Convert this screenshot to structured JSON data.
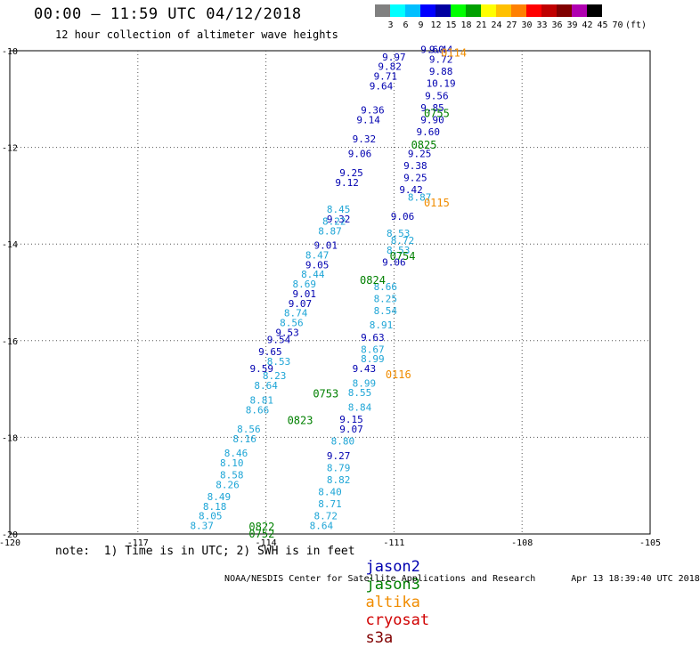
{
  "header": {
    "title": "00:00 — 11:59 UTC 04/12/2018",
    "subtitle": "12 hour collection of altimeter wave heights"
  },
  "color_scale": {
    "colors": [
      "#808080",
      "#00ffff",
      "#00bfff",
      "#0000ff",
      "#0000a0",
      "#00ff00",
      "#00a000",
      "#ffff00",
      "#ffc000",
      "#ff8000",
      "#ff0000",
      "#c00000",
      "#800000",
      "#b000b0",
      "#000000"
    ],
    "labels": [
      "3",
      "6",
      "9",
      "12",
      "15",
      "18",
      "21",
      "24",
      "27",
      "30",
      "33",
      "36",
      "39",
      "42",
      "45",
      "70",
      "(ft)"
    ]
  },
  "satellite_colors": {
    "jason2": "#0000b0",
    "jason2_light": "#1ea5d6",
    "jason3": "#008000",
    "altika": "#f08c00",
    "cryosat": "#d00000",
    "s3a": "#800000"
  },
  "chart_data": {
    "type": "scatter",
    "title": "00:00 — 11:59 UTC 04/12/2018",
    "subtitle": "12 hour collection of altimeter wave heights",
    "xlim": [
      -120,
      -105
    ],
    "ylim": [
      -20,
      -10
    ],
    "x_ticks": [
      "-120",
      "-117",
      "-114",
      "-111",
      "-108",
      "-105"
    ],
    "x_tick_values": [
      -120,
      -117,
      -114,
      -111,
      -108,
      -105
    ],
    "y_ticks": [
      "-10",
      "-12",
      "-14",
      "-16",
      "-18",
      "-20"
    ],
    "y_tick_values": [
      -10,
      -12,
      -14,
      -16,
      -18,
      -20
    ],
    "grid": true,
    "series": [
      {
        "name": "jason2",
        "color": "#0000b0",
        "points": [
          {
            "lon": -110.1,
            "lat": -10.05,
            "v": "9.60"
          },
          {
            "lon": -109.9,
            "lat": -10.05,
            "v": "9.44"
          },
          {
            "lon": -109.9,
            "lat": -10.25,
            "v": "9.72"
          },
          {
            "lon": -109.9,
            "lat": -10.5,
            "v": "9.88"
          },
          {
            "lon": -109.9,
            "lat": -10.75,
            "v": "10.19"
          },
          {
            "lon": -110.0,
            "lat": -11.0,
            "v": "9.56"
          },
          {
            "lon": -110.1,
            "lat": -11.25,
            "v": "9.85"
          },
          {
            "lon": -110.1,
            "lat": -11.5,
            "v": "9.90"
          },
          {
            "lon": -110.2,
            "lat": -11.75,
            "v": "9.60"
          },
          {
            "lon": -110.4,
            "lat": -12.2,
            "v": "9.25"
          },
          {
            "lon": -110.5,
            "lat": -12.45,
            "v": "9.38"
          },
          {
            "lon": -110.5,
            "lat": -12.7,
            "v": "9.25"
          },
          {
            "lon": -110.6,
            "lat": -12.95,
            "v": "9.42"
          },
          {
            "lon": -110.8,
            "lat": -13.5,
            "v": "9.06"
          },
          {
            "lon": -111.0,
            "lat": -14.45,
            "v": "9.06"
          },
          {
            "lon": -111.5,
            "lat": -16.0,
            "v": "9.63"
          },
          {
            "lon": -111.7,
            "lat": -16.65,
            "v": "9.43"
          },
          {
            "lon": -112.0,
            "lat": -17.7,
            "v": "9.15"
          },
          {
            "lon": -112.0,
            "lat": -17.9,
            "v": "9.07"
          },
          {
            "lon": -112.3,
            "lat": -18.45,
            "v": "9.27"
          },
          {
            "lon": -111.0,
            "lat": -10.2,
            "v": "9.97"
          },
          {
            "lon": -111.1,
            "lat": -10.4,
            "v": "9.82"
          },
          {
            "lon": -111.2,
            "lat": -10.6,
            "v": "9.71"
          },
          {
            "lon": -111.3,
            "lat": -10.8,
            "v": "9.64"
          },
          {
            "lon": -111.5,
            "lat": -11.3,
            "v": "9.36"
          },
          {
            "lon": -111.6,
            "lat": -11.5,
            "v": "9.14"
          },
          {
            "lon": -111.7,
            "lat": -11.9,
            "v": "9.32"
          },
          {
            "lon": -111.8,
            "lat": -12.2,
            "v": "9.06"
          },
          {
            "lon": -112.0,
            "lat": -12.6,
            "v": "9.25"
          },
          {
            "lon": -112.1,
            "lat": -12.8,
            "v": "9.12"
          },
          {
            "lon": -112.3,
            "lat": -13.55,
            "v": "9.32"
          },
          {
            "lon": -112.6,
            "lat": -14.1,
            "v": "9.01"
          },
          {
            "lon": -112.8,
            "lat": -14.5,
            "v": "9.05"
          },
          {
            "lon": -113.1,
            "lat": -15.1,
            "v": "9.01"
          },
          {
            "lon": -113.2,
            "lat": -15.3,
            "v": "9.07"
          },
          {
            "lon": -113.5,
            "lat": -15.9,
            "v": "9.53"
          },
          {
            "lon": -113.7,
            "lat": -16.05,
            "v": "9.54"
          },
          {
            "lon": -113.9,
            "lat": -16.3,
            "v": "9.65"
          },
          {
            "lon": -114.1,
            "lat": -16.65,
            "v": "9.59"
          }
        ]
      },
      {
        "name": "jason2",
        "color": "#1ea5d6",
        "points": [
          {
            "lon": -110.4,
            "lat": -13.1,
            "v": "8.87"
          },
          {
            "lon": -110.9,
            "lat": -13.85,
            "v": "8.53"
          },
          {
            "lon": -110.8,
            "lat": -14.0,
            "v": "8.72"
          },
          {
            "lon": -110.9,
            "lat": -14.2,
            "v": "8.53"
          },
          {
            "lon": -111.2,
            "lat": -14.95,
            "v": "8.66"
          },
          {
            "lon": -111.2,
            "lat": -15.2,
            "v": "8.25"
          },
          {
            "lon": -111.2,
            "lat": -15.45,
            "v": "8.54"
          },
          {
            "lon": -111.3,
            "lat": -15.75,
            "v": "8.91"
          },
          {
            "lon": -111.5,
            "lat": -16.25,
            "v": "8.67"
          },
          {
            "lon": -111.5,
            "lat": -16.45,
            "v": "8.99"
          },
          {
            "lon": -111.7,
            "lat": -16.95,
            "v": "8.99"
          },
          {
            "lon": -111.8,
            "lat": -17.15,
            "v": "8.55"
          },
          {
            "lon": -111.8,
            "lat": -17.45,
            "v": "8.84"
          },
          {
            "lon": -112.2,
            "lat": -18.15,
            "v": "8.80"
          },
          {
            "lon": -112.3,
            "lat": -18.7,
            "v": "8.79"
          },
          {
            "lon": -112.3,
            "lat": -18.95,
            "v": "8.82"
          },
          {
            "lon": -112.5,
            "lat": -19.2,
            "v": "8.40"
          },
          {
            "lon": -112.5,
            "lat": -19.45,
            "v": "8.71"
          },
          {
            "lon": -112.6,
            "lat": -19.7,
            "v": "8.72"
          },
          {
            "lon": -112.7,
            "lat": -19.9,
            "v": "8.64"
          },
          {
            "lon": -112.3,
            "lat": -13.35,
            "v": "8.45"
          },
          {
            "lon": -112.4,
            "lat": -13.6,
            "v": "8.22"
          },
          {
            "lon": -112.5,
            "lat": -13.8,
            "v": "8.87"
          },
          {
            "lon": -112.8,
            "lat": -14.3,
            "v": "8.47"
          },
          {
            "lon": -112.9,
            "lat": -14.7,
            "v": "8.44"
          },
          {
            "lon": -113.1,
            "lat": -14.9,
            "v": "8.69"
          },
          {
            "lon": -113.3,
            "lat": -15.5,
            "v": "8.74"
          },
          {
            "lon": -113.4,
            "lat": -15.7,
            "v": "8.56"
          },
          {
            "lon": -113.7,
            "lat": -16.5,
            "v": "8.53"
          },
          {
            "lon": -113.8,
            "lat": -16.8,
            "v": "8.23"
          },
          {
            "lon": -114.0,
            "lat": -17.0,
            "v": "8.64"
          },
          {
            "lon": -114.1,
            "lat": -17.3,
            "v": "8.81"
          },
          {
            "lon": -114.2,
            "lat": -17.5,
            "v": "8.66"
          },
          {
            "lon": -114.4,
            "lat": -17.9,
            "v": "8.56"
          },
          {
            "lon": -114.5,
            "lat": -18.1,
            "v": "8.16"
          },
          {
            "lon": -114.7,
            "lat": -18.4,
            "v": "8.46"
          },
          {
            "lon": -114.8,
            "lat": -18.6,
            "v": "8.10"
          },
          {
            "lon": -114.8,
            "lat": -18.85,
            "v": "8.58"
          },
          {
            "lon": -114.9,
            "lat": -19.05,
            "v": "8.26"
          },
          {
            "lon": -115.1,
            "lat": -19.3,
            "v": "8.49"
          },
          {
            "lon": -115.2,
            "lat": -19.5,
            "v": "8.18"
          },
          {
            "lon": -115.3,
            "lat": -19.7,
            "v": "8.05"
          },
          {
            "lon": -115.5,
            "lat": -19.9,
            "v": "8.37"
          }
        ]
      }
    ],
    "time_labels": [
      {
        "lon": -109.9,
        "lat": -10.05,
        "text": "0114",
        "sat": "altika"
      },
      {
        "lon": -110.3,
        "lat": -11.3,
        "text": "0755",
        "sat": "jason3"
      },
      {
        "lon": -110.6,
        "lat": -11.95,
        "text": "0825",
        "sat": "jason3"
      },
      {
        "lon": -110.3,
        "lat": -13.15,
        "text": "0115",
        "sat": "altika"
      },
      {
        "lon": -111.1,
        "lat": -14.25,
        "text": "0754",
        "sat": "jason3"
      },
      {
        "lon": -111.8,
        "lat": -14.75,
        "text": "0824",
        "sat": "jason3"
      },
      {
        "lon": -111.2,
        "lat": -16.7,
        "text": "0116",
        "sat": "altika"
      },
      {
        "lon": -112.9,
        "lat": -17.1,
        "text": "0753",
        "sat": "jason3"
      },
      {
        "lon": -113.5,
        "lat": -17.65,
        "text": "0823",
        "sat": "jason3"
      },
      {
        "lon": -114.4,
        "lat": -19.85,
        "text": "0822",
        "sat": "jason3"
      },
      {
        "lon": -114.4,
        "lat": -20.0,
        "text": "0752",
        "sat": "jason3"
      }
    ]
  },
  "note": "note:  1) Time is in UTC; 2) SWH is in feet",
  "satellites": {
    "jason2": "jason2",
    "jason3": "jason3",
    "altika": "altika",
    "cryosat": "cryosat",
    "s3a": "s3a"
  },
  "footer": {
    "source": "NOAA/NESDIS Center for Satellite Applications and Research",
    "timestamp": "Apr 13 18:39:40 UTC 2018"
  }
}
